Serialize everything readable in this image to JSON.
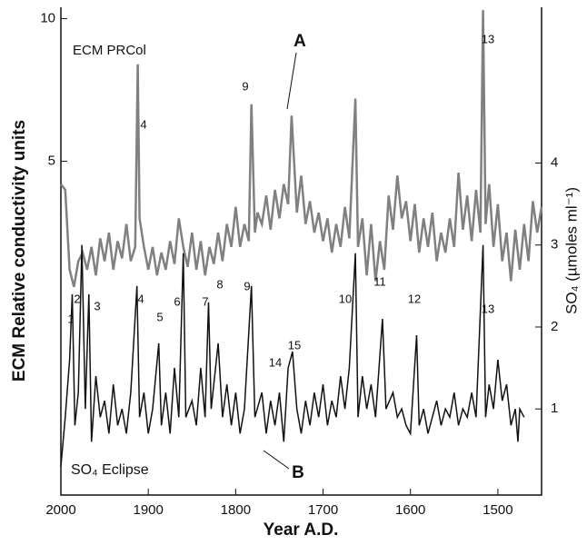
{
  "chart_data": {
    "type": "line",
    "xlabel": "Year  A.D.",
    "ylabel": "ECM Relative conductivity units",
    "y2label": "SO₄ (µmoles ml⁻¹)",
    "xlim": [
      2000,
      1450
    ],
    "xticks": [
      2000,
      1900,
      1800,
      1700,
      1600,
      1500
    ],
    "ylim": [
      -6.7,
      10.4
    ],
    "yticks": [
      5,
      10
    ],
    "y2lim": [
      -0.05,
      5.9
    ],
    "y2ticks": [
      1,
      2,
      3,
      4
    ],
    "series": [
      {
        "name": "ECM PRCol",
        "color": "#808080",
        "axis": "y",
        "x": [
          2000,
          1995,
          1990,
          1985,
          1980,
          1975,
          1970,
          1965,
          1960,
          1955,
          1950,
          1945,
          1940,
          1935,
          1930,
          1925,
          1920,
          1915,
          1912,
          1910,
          1905,
          1900,
          1895,
          1890,
          1885,
          1880,
          1875,
          1870,
          1865,
          1860,
          1855,
          1850,
          1845,
          1840,
          1835,
          1830,
          1825,
          1820,
          1815,
          1810,
          1805,
          1800,
          1795,
          1790,
          1785,
          1782,
          1778,
          1775,
          1770,
          1765,
          1760,
          1755,
          1750,
          1745,
          1740,
          1736,
          1730,
          1725,
          1720,
          1715,
          1710,
          1705,
          1700,
          1695,
          1690,
          1685,
          1680,
          1675,
          1670,
          1663,
          1660,
          1655,
          1650,
          1645,
          1640,
          1635,
          1630,
          1625,
          1620,
          1615,
          1610,
          1605,
          1600,
          1595,
          1590,
          1585,
          1580,
          1575,
          1570,
          1565,
          1560,
          1555,
          1550,
          1545,
          1540,
          1535,
          1530,
          1525,
          1520,
          1517,
          1514,
          1510,
          1505,
          1500,
          1495,
          1490,
          1485,
          1480,
          1475,
          1470,
          1465,
          1460,
          1455,
          1450
        ],
        "values": [
          4.2,
          4.0,
          1.2,
          0.6,
          1.5,
          1.8,
          1.2,
          2.0,
          1.0,
          2.3,
          1.5,
          2.5,
          1.2,
          2.2,
          1.6,
          2.8,
          1.5,
          2.0,
          8.4,
          3.0,
          2.0,
          1.2,
          2.0,
          1.0,
          1.8,
          1.2,
          2.2,
          1.4,
          3.0,
          2.0,
          1.3,
          2.5,
          1.2,
          2.2,
          1.0,
          2.0,
          1.4,
          2.5,
          1.5,
          2.8,
          2.0,
          3.4,
          2.0,
          2.8,
          2.2,
          7.0,
          2.5,
          3.2,
          2.8,
          3.8,
          2.6,
          4.0,
          3.0,
          4.2,
          3.5,
          6.6,
          3.2,
          4.5,
          2.8,
          3.6,
          2.5,
          3.2,
          2.2,
          3.0,
          1.8,
          2.8,
          2.0,
          3.4,
          2.3,
          7.2,
          2.0,
          3.0,
          1.0,
          2.8,
          0.8,
          2.2,
          1.2,
          3.8,
          2.6,
          4.5,
          3.0,
          3.6,
          2.2,
          3.5,
          1.8,
          3.0,
          2.0,
          3.2,
          1.5,
          2.5,
          1.8,
          3.0,
          2.0,
          4.6,
          2.6,
          3.8,
          2.2,
          4.0,
          2.5,
          10.3,
          2.8,
          4.2,
          2.0,
          3.5,
          1.5,
          2.5,
          0.8,
          2.6,
          1.2,
          2.8,
          1.5,
          3.6,
          2.5,
          3.4
        ]
      },
      {
        "name": "SO₄ Eclipse",
        "color": "#111111",
        "axis": "y2",
        "x": [
          2000,
          1995,
          1990,
          1987,
          1984,
          1980,
          1976,
          1972,
          1968,
          1965,
          1960,
          1955,
          1950,
          1945,
          1940,
          1935,
          1930,
          1925,
          1920,
          1913,
          1910,
          1905,
          1900,
          1895,
          1888,
          1885,
          1880,
          1875,
          1870,
          1865,
          1860,
          1857,
          1850,
          1845,
          1840,
          1835,
          1831,
          1828,
          1820,
          1815,
          1810,
          1805,
          1800,
          1795,
          1790,
          1782,
          1778,
          1770,
          1765,
          1760,
          1755,
          1750,
          1745,
          1740,
          1735,
          1730,
          1725,
          1720,
          1715,
          1710,
          1705,
          1700,
          1695,
          1690,
          1685,
          1680,
          1675,
          1670,
          1663,
          1660,
          1655,
          1650,
          1645,
          1640,
          1632,
          1628,
          1620,
          1615,
          1610,
          1605,
          1600,
          1593,
          1590,
          1585,
          1580,
          1575,
          1570,
          1565,
          1560,
          1555,
          1550,
          1545,
          1540,
          1535,
          1530,
          1525,
          1517,
          1514,
          1510,
          1505,
          1500,
          1495,
          1490,
          1485,
          1480,
          1477,
          1475,
          1470
        ],
        "values": [
          0.3,
          0.9,
          1.6,
          2.4,
          0.8,
          1.2,
          3.0,
          1.0,
          2.4,
          0.6,
          1.4,
          0.9,
          1.1,
          0.7,
          1.3,
          0.8,
          1.0,
          0.7,
          1.2,
          2.5,
          0.9,
          1.2,
          0.7,
          1.0,
          1.8,
          0.8,
          1.2,
          0.7,
          1.5,
          0.9,
          2.9,
          0.9,
          1.1,
          0.8,
          1.5,
          0.9,
          2.3,
          1.0,
          1.8,
          0.9,
          1.3,
          0.8,
          1.2,
          0.7,
          1.0,
          2.5,
          0.9,
          1.2,
          0.7,
          1.1,
          0.8,
          1.2,
          0.6,
          1.5,
          1.7,
          1.0,
          0.7,
          1.1,
          0.8,
          1.2,
          0.9,
          1.3,
          0.8,
          1.1,
          0.9,
          1.4,
          1.0,
          1.5,
          2.9,
          0.9,
          1.4,
          1.0,
          1.3,
          0.9,
          2.1,
          1.0,
          1.2,
          0.9,
          1.0,
          0.8,
          0.7,
          1.9,
          0.8,
          1.0,
          0.7,
          0.9,
          1.1,
          0.8,
          1.0,
          0.9,
          1.2,
          0.8,
          1.0,
          0.9,
          1.2,
          0.9,
          3.0,
          0.9,
          1.3,
          1.0,
          1.6,
          1.1,
          1.3,
          0.8,
          1.0,
          0.6,
          1.0,
          0.9
        ]
      }
    ],
    "annotations": [
      "A",
      "B",
      "4",
      "9",
      "13",
      "1",
      "2",
      "3",
      "4",
      "5",
      "6",
      "7",
      "8",
      "9",
      "10",
      "11",
      "12",
      "13",
      "14",
      "15"
    ]
  }
}
